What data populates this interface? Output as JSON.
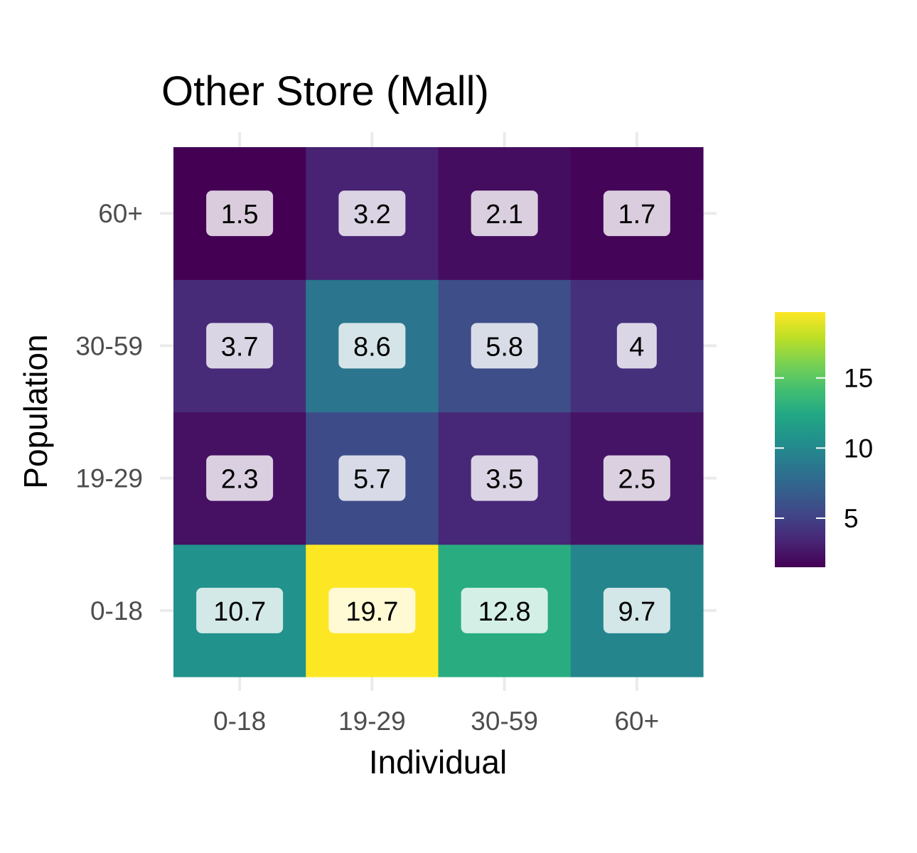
{
  "chart_data": {
    "type": "heatmap",
    "title": "Other Store (Mall)",
    "xlabel": "Individual",
    "ylabel": "Population",
    "x_categories": [
      "0-18",
      "19-29",
      "30-59",
      "60+"
    ],
    "y_categories": [
      "0-18",
      "19-29",
      "30-59",
      "60+"
    ],
    "values": [
      [
        10.7,
        19.7,
        12.8,
        9.7
      ],
      [
        2.3,
        5.7,
        3.5,
        2.5
      ],
      [
        3.7,
        8.6,
        5.8,
        4
      ],
      [
        1.5,
        3.2,
        2.1,
        1.7
      ]
    ],
    "value_labels": [
      [
        "10.7",
        "19.7",
        "12.8",
        "9.7"
      ],
      [
        "2.3",
        "5.7",
        "3.5",
        "2.5"
      ],
      [
        "3.7",
        "8.6",
        "5.8",
        "4"
      ],
      [
        "1.5",
        "3.2",
        "2.1",
        "1.7"
      ]
    ],
    "colorscale": "viridis",
    "color_range": [
      1.5,
      19.7
    ],
    "legend": {
      "placement": "right",
      "ticks": [
        5,
        10,
        15
      ],
      "tick_labels": [
        "5",
        "10",
        "15"
      ]
    },
    "grid": true
  }
}
